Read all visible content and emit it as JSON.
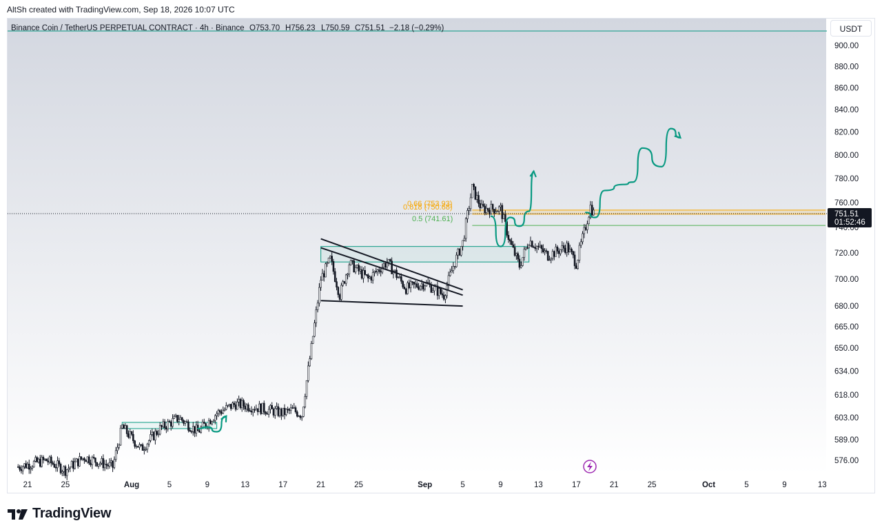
{
  "header": {
    "created_text": "AltSh created with TradingView.com, Sep 18, 2026 10:07 UTC"
  },
  "legend": {
    "symbol": "Binance Coin / TetherUS PERPETUAL CONTRACT · 4h · Binance",
    "open": "O753.70",
    "high": "H756.23",
    "low": "L750.59",
    "close": "C751.51",
    "change": "−2.18 (−0.29%)"
  },
  "price_axis": {
    "unit_button": "USDT",
    "ticks": [
      "900.00",
      "880.00",
      "860.00",
      "840.00",
      "820.00",
      "800.00",
      "780.00",
      "760.00",
      "740.00",
      "720.00",
      "700.00",
      "680.00",
      "665.00",
      "650.00",
      "634.00",
      "618.00",
      "603.00",
      "589.00",
      "576.00"
    ]
  },
  "last_price": {
    "price": "751.51",
    "countdown": "01:52:46"
  },
  "fib": {
    "l066": "0.66 (753.93)",
    "l0618": "0.618 (750.68)",
    "l05": "0.5 (741.61)"
  },
  "time_axis": {
    "labels": [
      "21",
      "25",
      "Aug",
      "5",
      "9",
      "13",
      "17",
      "21",
      "25",
      "Sep",
      "5",
      "9",
      "13",
      "17",
      "21",
      "25",
      "Oct",
      "5",
      "9",
      "13"
    ]
  },
  "branding": {
    "name": "TradingView"
  },
  "colors": {
    "bull": "#089981",
    "candle": "#131722",
    "fib_orange": "#f7a600",
    "fib_green": "#4caf50",
    "projection": "#089981",
    "bg_top": "#d3d7e0"
  },
  "chart_data": {
    "type": "candlestick",
    "title": "Binance Coin / TetherUS PERPETUAL CONTRACT · 4h · Binance",
    "xlabel": "",
    "ylabel": "USDT",
    "y_scale": "log",
    "ylim": [
      570,
      910
    ],
    "x_range": [
      "2026-07-20",
      "2026-10-14"
    ],
    "last": {
      "open": 753.7,
      "high": 756.23,
      "low": 750.59,
      "close": 751.51
    },
    "path": [
      [
        "2026-07-20",
        572
      ],
      [
        "2026-07-23",
        576
      ],
      [
        "2026-07-25",
        570
      ],
      [
        "2026-07-27",
        578
      ],
      [
        "2026-07-30",
        572
      ],
      [
        "2026-07-31",
        597
      ],
      [
        "2026-08-02",
        583
      ],
      [
        "2026-08-04",
        596
      ],
      [
        "2026-08-06",
        603
      ],
      [
        "2026-08-08",
        594
      ],
      [
        "2026-08-10",
        606
      ],
      [
        "2026-08-12",
        612
      ],
      [
        "2026-08-14",
        610
      ],
      [
        "2026-08-17",
        606
      ],
      [
        "2026-08-18",
        608
      ],
      [
        "2026-08-19",
        605
      ],
      [
        "2026-08-20",
        650
      ],
      [
        "2026-08-21",
        700
      ],
      [
        "2026-08-22",
        715
      ],
      [
        "2026-08-23",
        688
      ],
      [
        "2026-08-24",
        712
      ],
      [
        "2026-08-26",
        700
      ],
      [
        "2026-08-28",
        713
      ],
      [
        "2026-08-30",
        693
      ],
      [
        "2026-09-01",
        697
      ],
      [
        "2026-09-03",
        688
      ],
      [
        "2026-09-04",
        710
      ],
      [
        "2026-09-05",
        728
      ],
      [
        "2026-09-06",
        772
      ],
      [
        "2026-09-07",
        755
      ],
      [
        "2026-09-09",
        755
      ],
      [
        "2026-09-10",
        728
      ],
      [
        "2026-09-11",
        710
      ],
      [
        "2026-09-12",
        730
      ],
      [
        "2026-09-14",
        718
      ],
      [
        "2026-09-16",
        725
      ],
      [
        "2026-09-17",
        712
      ],
      [
        "2026-09-18",
        741
      ],
      [
        "2026-09-18T12",
        757
      ],
      [
        "2026-09-18T20",
        751.51
      ]
    ],
    "fib_levels": [
      {
        "label": "0.66 (753.93)",
        "price": 753.93
      },
      {
        "label": "0.618 (750.68)",
        "price": 750.68
      },
      {
        "label": "0.5 (741.61)",
        "price": 741.61
      }
    ],
    "zones": [
      {
        "from": "2026-07-31",
        "to": "2026-08-10",
        "low": 596,
        "high": 600
      },
      {
        "from": "2026-08-21",
        "to": "2026-09-12",
        "low": 713,
        "high": 725
      }
    ],
    "trendlines": [
      {
        "from": [
          "2026-08-21",
          731
        ],
        "to": [
          "2026-09-05",
          692
        ]
      },
      {
        "from": [
          "2026-08-21",
          724
        ],
        "to": [
          "2026-09-05",
          688
        ]
      },
      {
        "from": [
          "2026-08-21",
          684
        ],
        "to": [
          "2026-09-05",
          680
        ]
      }
    ],
    "projections": [
      {
        "points": [
          [
            "2026-08-08",
            596
          ],
          [
            "2026-08-09",
            597
          ],
          [
            "2026-08-10",
            594
          ],
          [
            "2026-08-11",
            604
          ]
        ]
      },
      {
        "points": [
          [
            "2026-09-08",
            749
          ],
          [
            "2026-09-09",
            725
          ],
          [
            "2026-09-10",
            748
          ],
          [
            "2026-09-11",
            741
          ],
          [
            "2026-09-12",
            753
          ],
          [
            "2026-09-12T12",
            786
          ]
        ]
      },
      {
        "points": [
          [
            "2026-09-18",
            752
          ],
          [
            "2026-09-19",
            748
          ],
          [
            "2026-09-20",
            770
          ],
          [
            "2026-09-22",
            775
          ],
          [
            "2026-09-23",
            777
          ],
          [
            "2026-09-24",
            806
          ],
          [
            "2026-09-26",
            790
          ],
          [
            "2026-09-27",
            823
          ],
          [
            "2026-09-28",
            815
          ]
        ]
      }
    ]
  }
}
